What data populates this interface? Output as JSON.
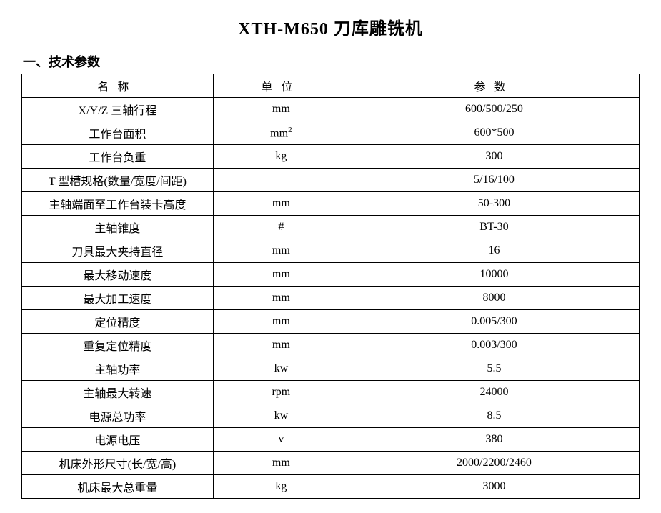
{
  "document": {
    "title": "XTH-M650 刀库雕铣机",
    "section_heading": "一、技术参数",
    "table": {
      "type": "table",
      "background_color": "#ffffff",
      "border_color": "#000000",
      "text_color": "#000000",
      "title_fontsize": 24,
      "heading_fontsize": 18,
      "cell_fontsize": 16,
      "columns": [
        {
          "header": "名称",
          "width_pct": 31,
          "align": "center"
        },
        {
          "header": "单位",
          "width_pct": 22,
          "align": "center"
        },
        {
          "header": "参数",
          "width_pct": 47,
          "align": "center"
        }
      ],
      "rows": [
        {
          "name": "X/Y/Z 三轴行程",
          "unit": "mm",
          "param": "600/500/250",
          "name_align": "center"
        },
        {
          "name": "工作台面积",
          "unit_html": "mm²",
          "unit": "mm",
          "unit_sup": "2",
          "param": "600*500",
          "name_align": "center"
        },
        {
          "name": "工作台负重",
          "unit": "kg",
          "param": "300",
          "name_align": "center"
        },
        {
          "name": "T 型槽规格(数量/宽度/间距)",
          "unit": "",
          "param": "5/16/100",
          "name_align": "left"
        },
        {
          "name": "主轴端面至工作台装卡高度",
          "unit": "mm",
          "param": "50-300",
          "name_align": "center"
        },
        {
          "name": "主轴锥度",
          "unit": "#",
          "param": "BT-30",
          "name_align": "center"
        },
        {
          "name": "刀具最大夹持直径",
          "unit": "mm",
          "param": "16",
          "name_align": "center"
        },
        {
          "name": "最大移动速度",
          "unit": "mm",
          "param": "10000",
          "name_align": "center"
        },
        {
          "name": "最大加工速度",
          "unit": "mm",
          "param": "8000",
          "name_align": "center"
        },
        {
          "name": "定位精度",
          "unit": "mm",
          "param": "0.005/300",
          "name_align": "center"
        },
        {
          "name": "重复定位精度",
          "unit": "mm",
          "param": "0.003/300",
          "name_align": "center"
        },
        {
          "name": "主轴功率",
          "unit": "kw",
          "param": "5.5",
          "name_align": "center"
        },
        {
          "name": "主轴最大转速",
          "unit": "rpm",
          "param": "24000",
          "name_align": "center"
        },
        {
          "name": "电源总功率",
          "unit": "kw",
          "param": "8.5",
          "name_align": "center"
        },
        {
          "name": "电源电压",
          "unit": "v",
          "param": "380",
          "name_align": "center"
        },
        {
          "name": "机床外形尺寸(长/宽/高)",
          "unit": "mm",
          "param": "2000/2200/2460",
          "name_align": "center"
        },
        {
          "name": "机床最大总重量",
          "unit": "kg",
          "param": "3000",
          "name_align": "center"
        }
      ]
    }
  }
}
